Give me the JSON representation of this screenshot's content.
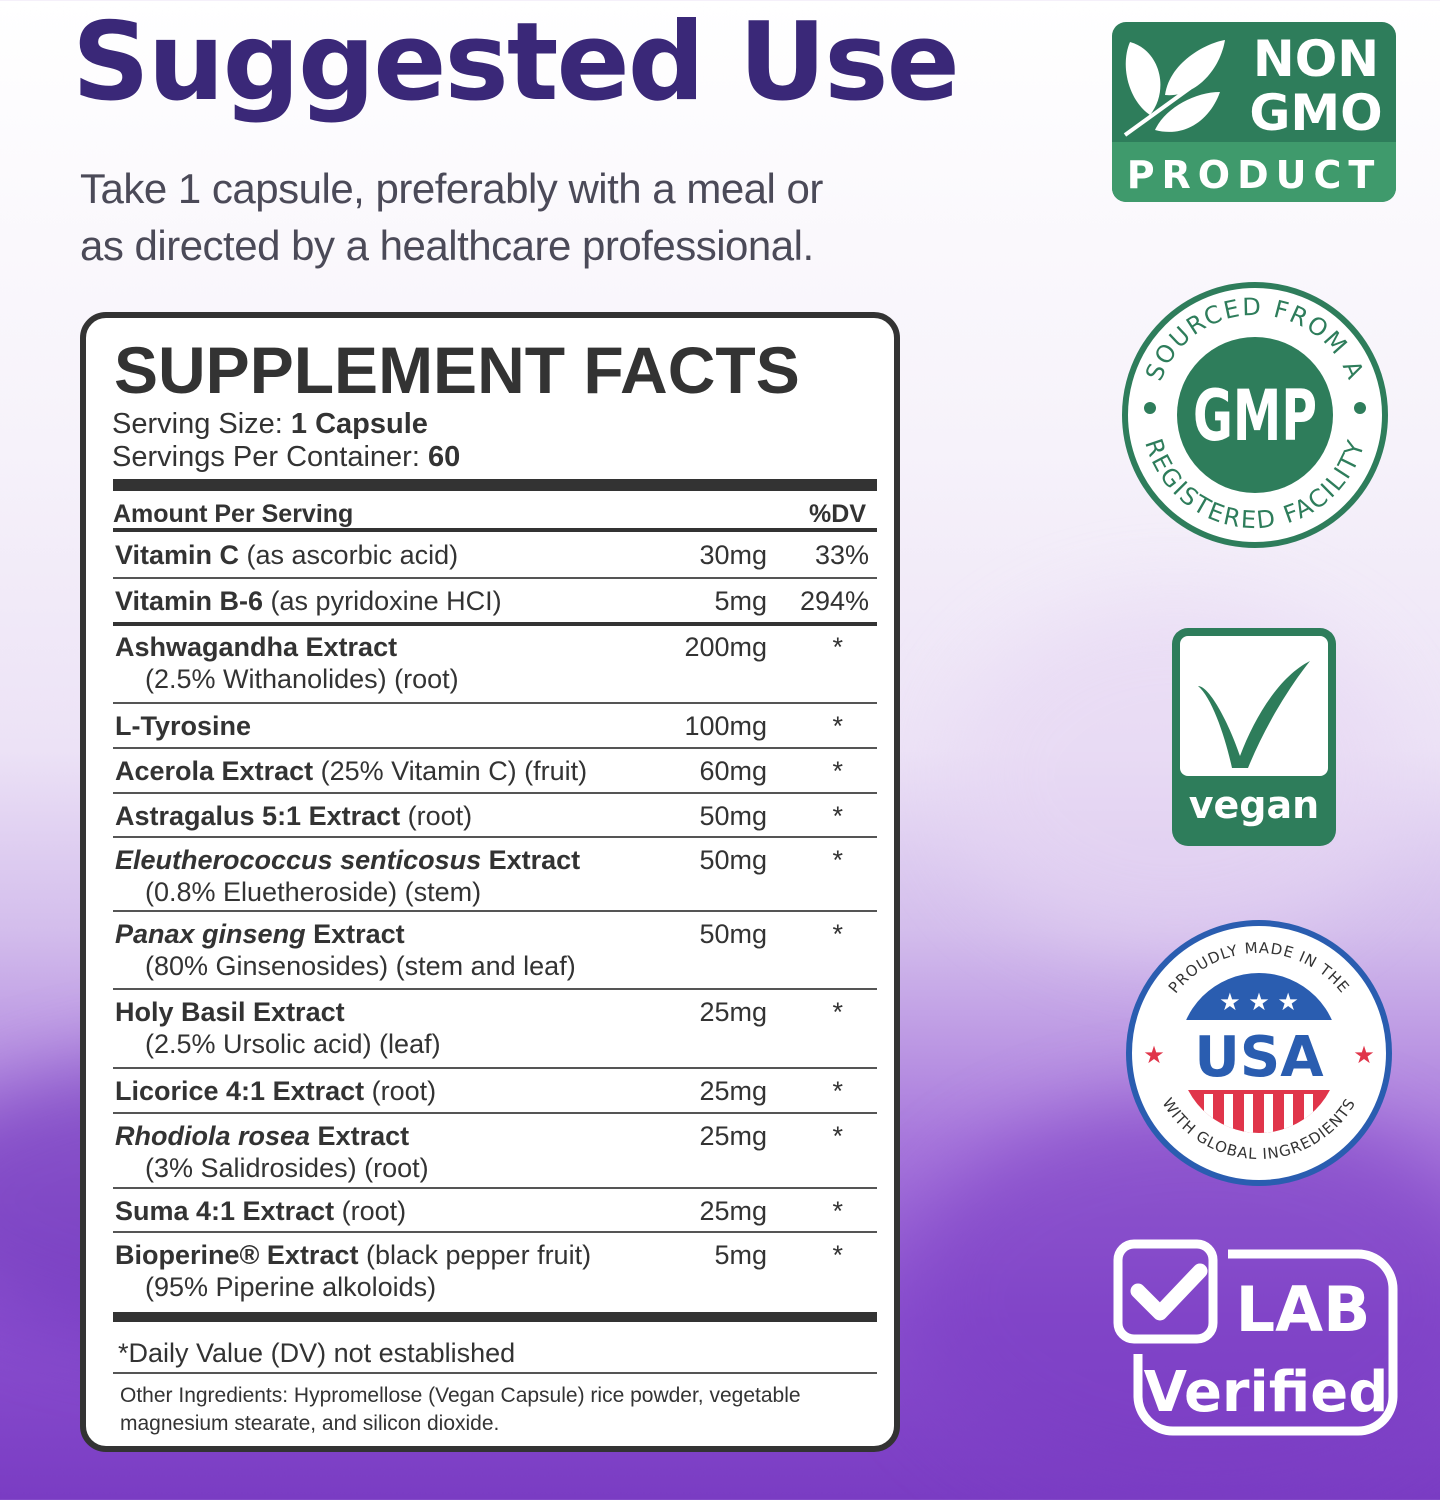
{
  "header": {
    "title": "Suggested Use",
    "instructions": [
      "Take 1 capsule, preferably with a meal or",
      "as directed by a healthcare professional."
    ]
  },
  "facts": {
    "title": "SUPPLEMENT FACTS",
    "serving_size_label": "Serving Size:",
    "serving_size_value": "1 Capsule",
    "servings_label": "Servings Per Container:",
    "servings_value": "60",
    "amount_header": "Amount Per Serving",
    "dv_header": "%DV",
    "rows": [
      {
        "name": [
          {
            "t": "Vitamin C",
            "s": "b"
          },
          {
            "t": " (as ascorbic acid)",
            "s": ""
          }
        ],
        "amount": "30mg",
        "dv": "33%"
      },
      {
        "name": [
          {
            "t": "Vitamin B-6",
            "s": "b"
          },
          {
            "t": " (as pyridoxine HCI)",
            "s": ""
          }
        ],
        "amount": "5mg",
        "dv": "294%"
      },
      {
        "name": [
          {
            "t": "Ashwagandha Extract",
            "s": "b"
          }
        ],
        "sub": "(2.5% Withanolides) (root)",
        "amount": "200mg",
        "dv": "*"
      },
      {
        "name": [
          {
            "t": "L-Tyrosine",
            "s": "b"
          }
        ],
        "amount": "100mg",
        "dv": "*"
      },
      {
        "name": [
          {
            "t": "Acerola Extract",
            "s": "b"
          },
          {
            "t": " (25% Vitamin C) (fruit)",
            "s": ""
          }
        ],
        "amount": "60mg",
        "dv": "*"
      },
      {
        "name": [
          {
            "t": "Astragalus 5:1 Extract",
            "s": "b"
          },
          {
            "t": " (root)",
            "s": ""
          }
        ],
        "amount": "50mg",
        "dv": "*"
      },
      {
        "name": [
          {
            "t": "Eleutherococcus senticosus",
            "s": "bi"
          },
          {
            "t": " Extract",
            "s": "b"
          }
        ],
        "sub": "(0.8% Eluetheroside) (stem)",
        "amount": "50mg",
        "dv": "*"
      },
      {
        "name": [
          {
            "t": "Panax ginseng",
            "s": "bi"
          },
          {
            "t": " Extract",
            "s": "b"
          }
        ],
        "sub": "(80% Ginsenosides) (stem and leaf)",
        "amount": "50mg",
        "dv": "*"
      },
      {
        "name": [
          {
            "t": "Holy Basil Extract",
            "s": "b"
          }
        ],
        "sub": "(2.5% Ursolic acid) (leaf)",
        "amount": "25mg",
        "dv": "*"
      },
      {
        "name": [
          {
            "t": "Licorice 4:1 Extract",
            "s": "b"
          },
          {
            "t": " (root)",
            "s": ""
          }
        ],
        "amount": "25mg",
        "dv": "*"
      },
      {
        "name": [
          {
            "t": "Rhodiola rosea",
            "s": "bi"
          },
          {
            "t": " Extract",
            "s": "b"
          }
        ],
        "sub": "(3% Salidrosides) (root)",
        "amount": "25mg",
        "dv": "*"
      },
      {
        "name": [
          {
            "t": "Suma 4:1 Extract",
            "s": "b"
          },
          {
            "t": " (root)",
            "s": ""
          }
        ],
        "amount": "25mg",
        "dv": "*"
      },
      {
        "name": [
          {
            "t": "Bioperine® Extract",
            "s": "b"
          },
          {
            "t": " (black pepper fruit)",
            "s": ""
          }
        ],
        "sub": "(95% Piperine alkoloids)",
        "amount": "5mg",
        "dv": "*"
      }
    ],
    "footnote": "*Daily Value (DV) not established",
    "other_ingredients": "Other Ingredients: Hypromellose (Vegan Capsule) rice powder, vegetable magnesium stearate, and silicon dioxide."
  },
  "badges": {
    "non_gmo": {
      "line1": "NON",
      "line2": "GMO",
      "line3": "PRODUCT",
      "icon": "leaf-icon"
    },
    "gmp": {
      "top": "SOURCED FROM A",
      "center": "GMP",
      "bottom": "REGISTERED FACILITY"
    },
    "vegan": {
      "label": "vegan",
      "icon": "v-check-icon"
    },
    "usa": {
      "top": "PROUDLY MADE IN THE",
      "center": "USA",
      "bottom": "WITH GLOBAL INGREDIENTS"
    },
    "lab": {
      "line1": "LAB",
      "line2": "Verified",
      "icon": "checkbox-icon"
    }
  },
  "colors": {
    "title": "#3a2878",
    "green": "#2e7d5b",
    "green_light": "#3f9a6c",
    "usa_blue": "#2a5db0",
    "usa_red": "#e0354a",
    "purple_bg": "#7a3cc3"
  }
}
